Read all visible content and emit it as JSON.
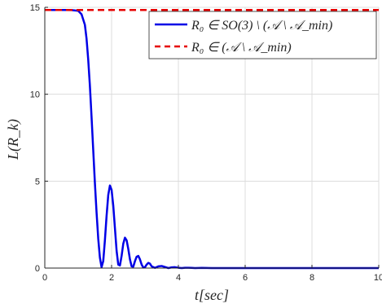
{
  "chart_data": {
    "type": "line",
    "xlabel": "t[sec]",
    "ylabel": "L(R_k)",
    "xlim": [
      0,
      10
    ],
    "ylim": [
      0,
      15
    ],
    "xticks": [
      0,
      2,
      4,
      6,
      8,
      10
    ],
    "yticks": [
      0,
      5,
      10,
      15
    ],
    "xtick_labels": [
      "0",
      "2",
      "4",
      "6",
      "8",
      "10"
    ],
    "ytick_labels": [
      "0",
      "5",
      "10",
      "15"
    ],
    "grid": true,
    "legend_position": "top-right",
    "series": [
      {
        "name": "R₀ ∈ SO(3) \\ (𝒜 \\ 𝒜_min)",
        "color": "#0000e6",
        "style": "solid",
        "x": [
          0,
          0.2,
          0.4,
          0.6,
          0.8,
          1.0,
          1.1,
          1.2,
          1.25,
          1.3,
          1.35,
          1.4,
          1.45,
          1.5,
          1.55,
          1.6,
          1.65,
          1.7,
          1.75,
          1.8,
          1.85,
          1.9,
          1.95,
          2.0,
          2.05,
          2.1,
          2.15,
          2.2,
          2.25,
          2.3,
          2.35,
          2.4,
          2.45,
          2.5,
          2.55,
          2.6,
          2.65,
          2.7,
          2.75,
          2.8,
          2.85,
          2.9,
          2.95,
          3.0,
          3.05,
          3.1,
          3.15,
          3.2,
          3.3,
          3.4,
          3.5,
          3.6,
          3.7,
          3.8,
          3.9,
          4.0,
          4.1,
          4.2,
          4.3,
          4.4,
          4.5,
          4.7,
          5.0,
          5.5,
          6.0,
          7.0,
          8.0,
          9.0,
          10.0
        ],
        "y": [
          14.85,
          14.85,
          14.85,
          14.85,
          14.84,
          14.8,
          14.6,
          14.0,
          13.2,
          12.0,
          10.5,
          8.7,
          6.8,
          4.9,
          3.2,
          1.7,
          0.6,
          0.05,
          0.4,
          1.6,
          3.0,
          4.2,
          4.75,
          4.5,
          3.6,
          2.3,
          1.0,
          0.2,
          0.15,
          0.7,
          1.4,
          1.75,
          1.6,
          1.1,
          0.5,
          0.1,
          0.08,
          0.4,
          0.65,
          0.7,
          0.5,
          0.2,
          0.03,
          0.05,
          0.2,
          0.3,
          0.25,
          0.1,
          0.01,
          0.1,
          0.12,
          0.06,
          0.0,
          0.04,
          0.05,
          0.02,
          0.0,
          0.02,
          0.02,
          0.01,
          0.0,
          0.01,
          0.0,
          0.0,
          0.0,
          0.0,
          0.0,
          0.0,
          0.0
        ]
      },
      {
        "name": "R₀ ∈ (𝒜 \\ 𝒜_min)",
        "color": "#e60000",
        "style": "dashed",
        "x": [
          0,
          10
        ],
        "y": [
          14.85,
          14.85
        ]
      }
    ]
  }
}
